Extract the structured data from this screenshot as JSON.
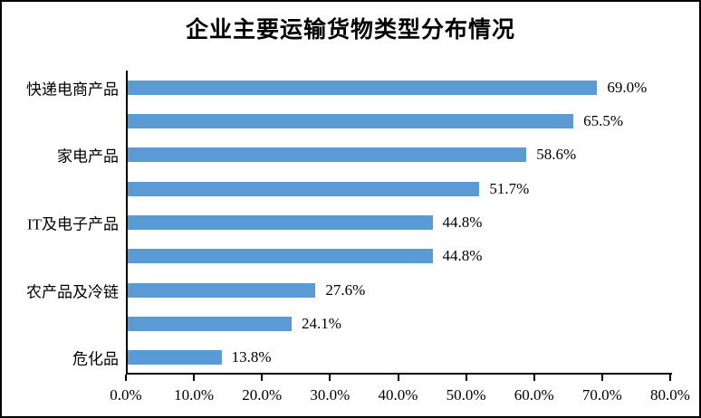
{
  "chart_data": {
    "type": "bar",
    "orientation": "horizontal",
    "title": "企业主要运输货物类型分布情况",
    "categories": [
      "快递电商产品",
      "",
      "家电产品",
      "",
      "IT及电子产品",
      "",
      "农产品及冷链",
      "",
      "危化品"
    ],
    "values": [
      69.0,
      65.5,
      58.6,
      51.7,
      44.8,
      44.8,
      27.6,
      24.1,
      13.8
    ],
    "data_labels": [
      "69.0%",
      "65.5%",
      "58.6%",
      "51.7%",
      "44.8%",
      "44.8%",
      "27.6%",
      "24.1%",
      "13.8%"
    ],
    "x_ticks": [
      "0.0%",
      "10.0%",
      "20.0%",
      "30.0%",
      "40.0%",
      "50.0%",
      "60.0%",
      "70.0%",
      "80.0%"
    ],
    "xlim": [
      0,
      80
    ],
    "grid": false,
    "legend_position": "none",
    "bar_color": "#5B9BD5",
    "axis_color": "#000000",
    "background_color": "#FFFFFF"
  }
}
